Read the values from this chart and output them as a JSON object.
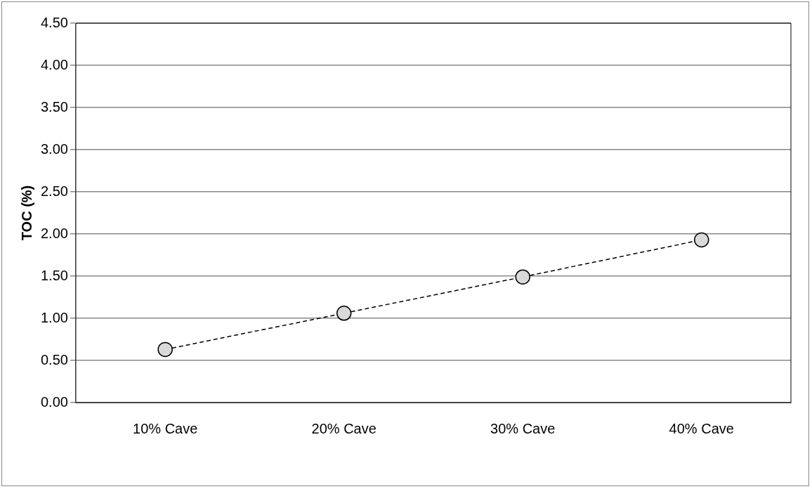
{
  "chart_data": {
    "type": "line",
    "ylabel": "TOC (%)",
    "categories": [
      "10% Cave",
      "20% Cave",
      "30% Cave",
      "40% Cave"
    ],
    "series": [
      {
        "color": "#000000",
        "values": [
          0.63,
          1.06,
          1.49,
          1.93
        ]
      }
    ],
    "ylim": [
      0,
      4.5
    ],
    "yticks": [
      {
        "value": 0,
        "label": "0.00"
      },
      {
        "value": 0.5,
        "label": "0.50"
      },
      {
        "value": 1,
        "label": "1.00"
      },
      {
        "value": 1.5,
        "label": "1.50"
      },
      {
        "value": 2,
        "label": "2.00"
      },
      {
        "value": 2.5,
        "label": "2.50"
      },
      {
        "value": 3,
        "label": "3.00"
      },
      {
        "value": 3.5,
        "label": "3.50"
      },
      {
        "value": 4,
        "label": "4.00"
      },
      {
        "value": 4.5,
        "label": "4.50"
      }
    ],
    "grid": "y",
    "legend": false,
    "marker": "circle",
    "line_style": "dashed"
  }
}
